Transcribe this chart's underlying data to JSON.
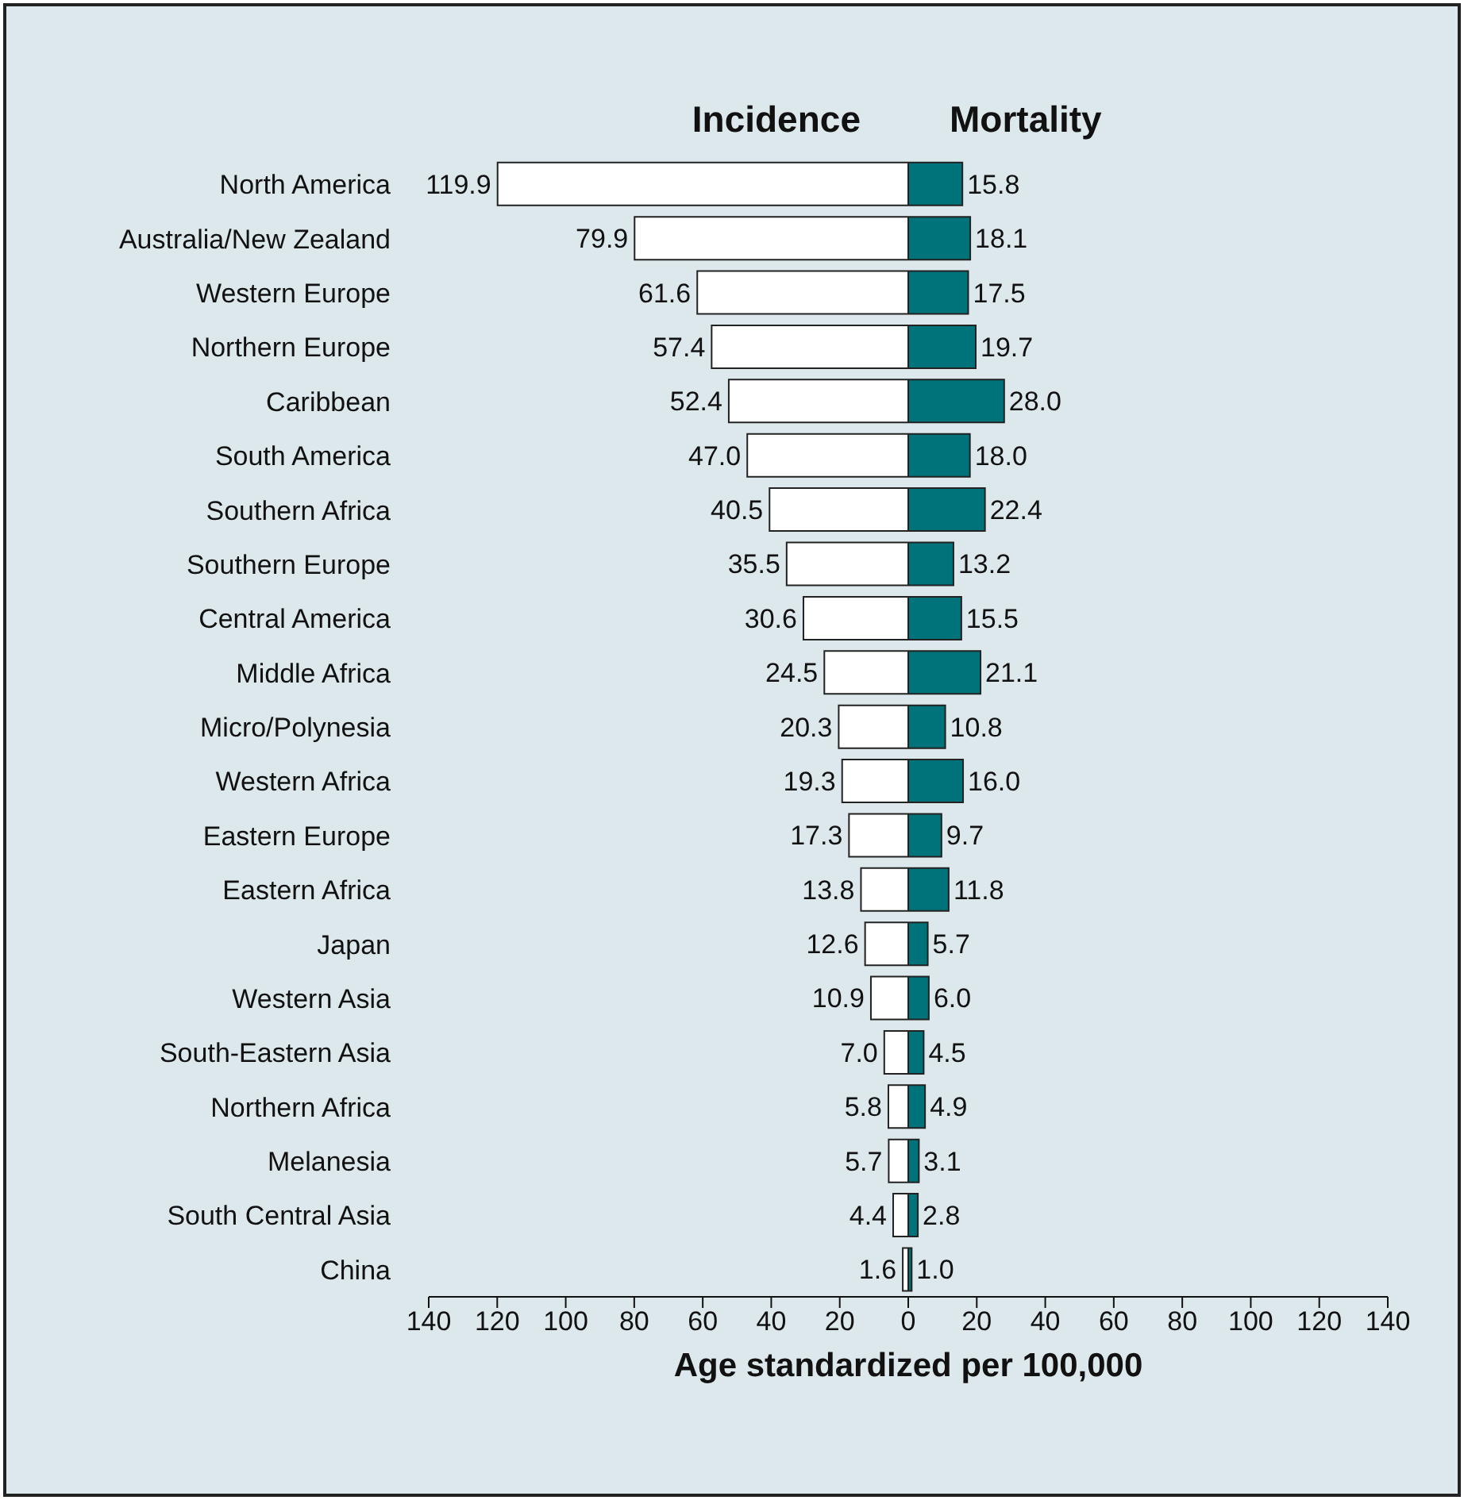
{
  "chart_data": [
    {
      "type": "bar",
      "orientation": "horizontal",
      "title": "Incidence",
      "xlabel": "Age standardized per 100,000",
      "categories": [
        "North America",
        "Australia/New Zealand",
        "Western Europe",
        "Northern Europe",
        "Caribbean",
        "South America",
        "Southern Africa",
        "Southern Europe",
        "Central America",
        "Middle Africa",
        "Micro/Polynesia",
        "Western Africa",
        "Eastern Europe",
        "Eastern Africa",
        "Japan",
        "Western Asia",
        "South-Eastern Asia",
        "Northern Africa",
        "Melanesia",
        "South Central Asia",
        "China"
      ],
      "color": "#ffffff",
      "values": [
        119.9,
        79.9,
        61.6,
        57.4,
        52.4,
        47.0,
        40.5,
        35.5,
        30.6,
        24.5,
        20.3,
        19.3,
        17.3,
        13.8,
        12.6,
        10.9,
        7.0,
        5.8,
        5.7,
        4.4,
        1.6
      ],
      "value_labels": [
        "119.9",
        "79.9",
        "61.6",
        "57.4",
        "52.4",
        "47.0",
        "40.5",
        "35.5",
        "30.6",
        "24.5",
        "20.3",
        "19.3",
        "17.3",
        "13.8",
        "12.6",
        "10.9",
        "7.0",
        "5.8",
        "5.7",
        "4.4",
        "1.6"
      ],
      "xlim": [
        140,
        0
      ],
      "xticks": [
        140,
        120,
        100,
        80,
        60,
        40,
        20,
        0
      ],
      "grid": false,
      "legend": false
    },
    {
      "type": "bar",
      "orientation": "horizontal",
      "title": "Mortality",
      "categories": [
        null,
        null,
        null,
        null,
        null,
        null,
        null,
        null,
        null,
        null,
        null,
        null,
        null,
        null,
        null,
        null,
        null,
        null,
        null,
        null,
        null
      ],
      "color": "#00727a",
      "values": [
        15.8,
        18.1,
        17.5,
        19.7,
        28.0,
        18.0,
        22.4,
        13.2,
        15.5,
        21.1,
        10.8,
        16.0,
        9.7,
        11.8,
        5.7,
        6.0,
        4.5,
        4.9,
        3.1,
        2.8,
        1.0
      ],
      "value_labels": [
        "15.8",
        "18.1",
        "17.5",
        "19.7",
        "28.0",
        "18.0",
        "22.4",
        "13.2",
        "15.5",
        "21.1",
        "10.8",
        "16.0",
        "9.7",
        "11.8",
        "5.7",
        "6.0",
        "4.5",
        "4.9",
        "3.1",
        "2.8",
        "1.0"
      ],
      "xlim": [
        0,
        140
      ],
      "xticks": [
        20,
        40,
        60,
        80,
        100,
        120,
        140
      ],
      "tick_labels": "x",
      "grid": false,
      "legend": false
    }
  ]
}
